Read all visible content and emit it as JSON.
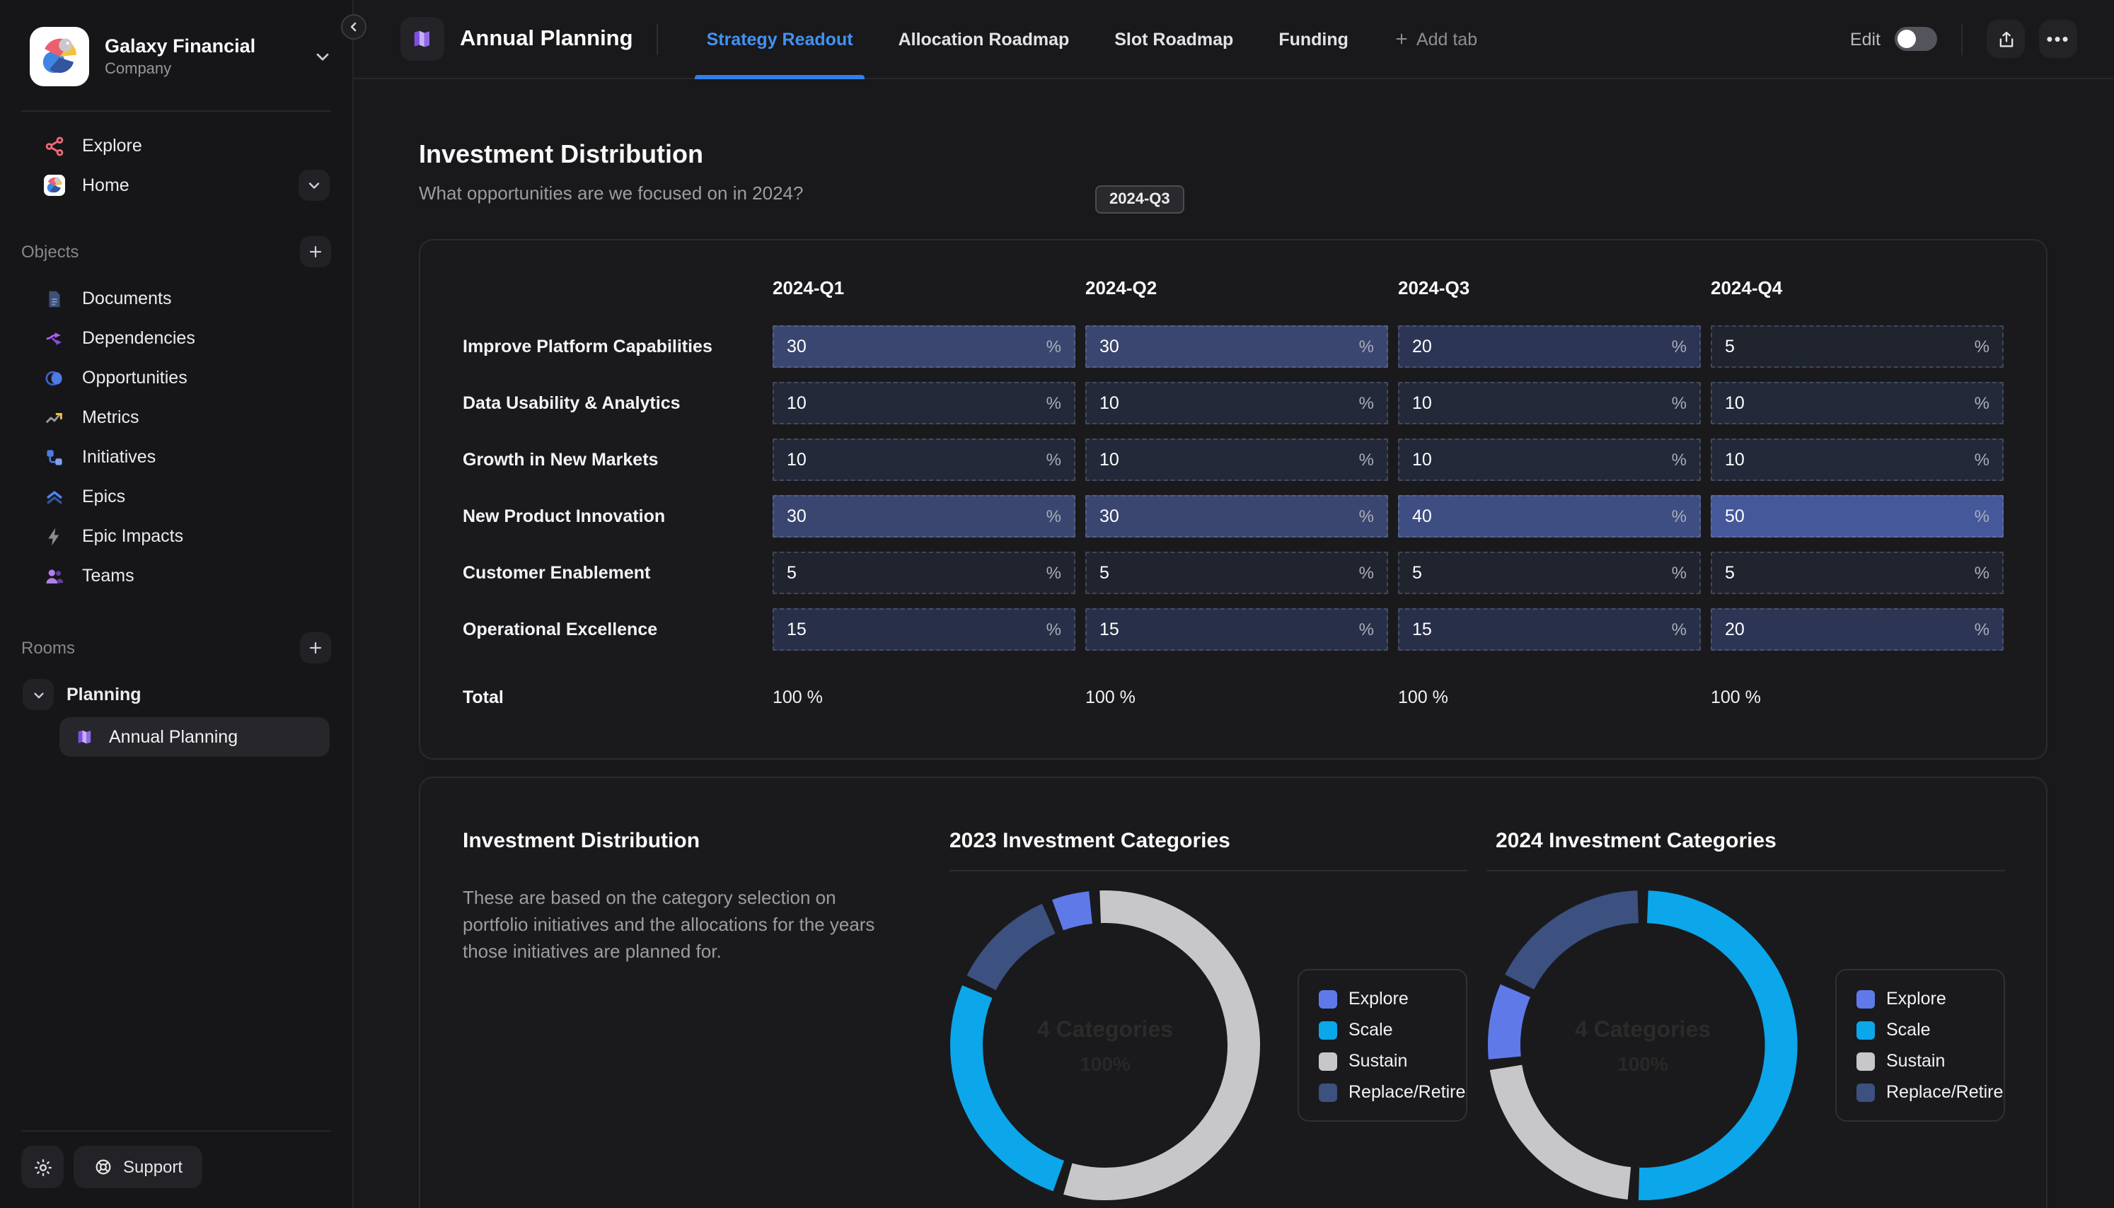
{
  "sidebar": {
    "org": {
      "name": "Galaxy Financial",
      "type": "Company"
    },
    "nav": [
      {
        "label": "Explore",
        "icon": "share-network-icon"
      },
      {
        "label": "Home",
        "icon": "home-logo-icon"
      }
    ],
    "objects_label": "Objects",
    "objects": [
      {
        "label": "Documents",
        "icon": "document-icon"
      },
      {
        "label": "Dependencies",
        "icon": "dependencies-icon"
      },
      {
        "label": "Opportunities",
        "icon": "opportunities-icon"
      },
      {
        "label": "Metrics",
        "icon": "metrics-icon"
      },
      {
        "label": "Initiatives",
        "icon": "initiatives-icon"
      },
      {
        "label": "Epics",
        "icon": "epics-icon"
      },
      {
        "label": "Epic Impacts",
        "icon": "epic-impacts-icon"
      },
      {
        "label": "Teams",
        "icon": "teams-icon"
      }
    ],
    "rooms_label": "Rooms",
    "room": {
      "label": "Planning",
      "child": {
        "label": "Annual Planning",
        "active": true
      }
    },
    "support_label": "Support"
  },
  "header": {
    "title": "Annual Planning",
    "tabs": [
      {
        "label": "Strategy Readout",
        "active": true
      },
      {
        "label": "Allocation Roadmap",
        "active": false
      },
      {
        "label": "Slot Roadmap",
        "active": false
      },
      {
        "label": "Funding",
        "active": false
      }
    ],
    "add_tab_label": "Add tab",
    "edit_label": "Edit",
    "edit_on": false
  },
  "main": {
    "section": {
      "title": "Investment Distribution",
      "subtitle": "What opportunities are we focused on in 2024?",
      "chip": "2024-Q3"
    },
    "table": {
      "columns": [
        "2024-Q1",
        "2024-Q2",
        "2024-Q3",
        "2024-Q4"
      ],
      "unit": "%",
      "rows": [
        {
          "label": "Improve Platform Capabilities",
          "values": [
            30,
            30,
            20,
            5
          ]
        },
        {
          "label": "Data Usability & Analytics",
          "values": [
            10,
            10,
            10,
            10
          ]
        },
        {
          "label": "Growth in New Markets",
          "values": [
            10,
            10,
            10,
            10
          ]
        },
        {
          "label": "New Product Innovation",
          "values": [
            30,
            30,
            40,
            50
          ]
        },
        {
          "label": "Customer Enablement",
          "values": [
            5,
            5,
            5,
            5
          ]
        },
        {
          "label": "Operational Excellence",
          "values": [
            15,
            15,
            15,
            20
          ]
        }
      ],
      "total_label": "Total",
      "totals": [
        "100 %",
        "100 %",
        "100 %",
        "100 %"
      ]
    },
    "cell_colors": {
      "5": "#20242f",
      "10": "#232939",
      "15": "#283049",
      "20": "#2d3554",
      "30": "#3a4670",
      "40": "#3e4e82",
      "50": "#45589a"
    },
    "charts_panel": {
      "title": "Investment Distribution",
      "description": "These are based on the category selection on portfolio initiatives and the allocations for the years those initiatives are planned for."
    }
  },
  "chart_data": [
    {
      "type": "donut",
      "title": "2023 Investment Categories",
      "center_label": "4 Categories",
      "center_sublabel": "100%",
      "legend": [
        "Explore",
        "Scale",
        "Sustain",
        "Replace/Retire"
      ],
      "colors": {
        "Explore": "#5f7ae8",
        "Scale": "#0ca6ea",
        "Sustain": "#c7c7c9",
        "Replace/Retire": "#3c5180"
      },
      "start_angle": -20,
      "segments": [
        {
          "name": "Explore",
          "value": 5
        },
        {
          "name": "Sustain",
          "value": 56
        },
        {
          "name": "Scale",
          "value": 27
        },
        {
          "name": "Replace/Retire",
          "value": 12
        }
      ]
    },
    {
      "type": "donut",
      "title": "2024 Investment Categories",
      "center_label": "4 Categories",
      "center_sublabel": "100%",
      "legend": [
        "Explore",
        "Scale",
        "Sustain",
        "Replace/Retire"
      ],
      "colors": {
        "Explore": "#5f7ae8",
        "Scale": "#0ca6ea",
        "Sustain": "#c7c7c9",
        "Replace/Retire": "#3c5180"
      },
      "start_angle": 2,
      "segments": [
        {
          "name": "Scale",
          "value": 51
        },
        {
          "name": "Sustain",
          "value": 22
        },
        {
          "name": "Explore",
          "value": 9
        },
        {
          "name": "Replace/Retire",
          "value": 18
        }
      ]
    }
  ],
  "colors": {
    "accent_blue": "#2f80ed",
    "active_tab": "#4292f4",
    "page_bg": "#19191b",
    "panel_border": "#2b2b2e"
  }
}
